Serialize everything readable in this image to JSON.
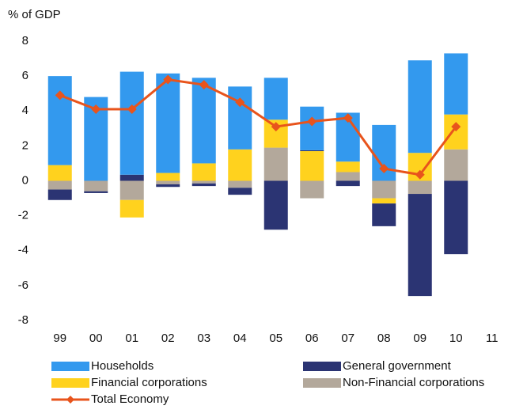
{
  "chart_data": {
    "type": "stacked-bar-line",
    "y_label": "% of GDP",
    "categories": [
      "99",
      "00",
      "01",
      "02",
      "03",
      "04",
      "05",
      "06",
      "07",
      "08",
      "09",
      "10",
      "11"
    ],
    "series": [
      {
        "name": "Households",
        "color": "#3399ee",
        "values": [
          5.1,
          4.8,
          5.9,
          5.7,
          4.9,
          3.6,
          2.4,
          2.5,
          2.8,
          3.2,
          5.3,
          3.5,
          null
        ]
      },
      {
        "name": "General government",
        "color": "#2b3473",
        "values": [
          -0.6,
          -0.1,
          0.35,
          -0.15,
          -0.15,
          -0.4,
          -2.8,
          0.05,
          -0.3,
          -1.3,
          -5.85,
          -4.2,
          null
        ]
      },
      {
        "name": "Financial corporations",
        "color": "#ffd21e",
        "values": [
          0.9,
          0,
          -1.0,
          0.45,
          1.0,
          1.8,
          1.6,
          1.7,
          0.6,
          -0.3,
          1.6,
          2.0,
          null
        ]
      },
      {
        "name": "Non-Financial corporations",
        "color": "#b3a89b",
        "values": [
          -0.5,
          -0.6,
          -1.1,
          -0.2,
          -0.15,
          -0.4,
          1.9,
          -1.0,
          0.5,
          -1.0,
          -0.75,
          1.8,
          null
        ]
      },
      {
        "name": "Total Economy",
        "color": "#e8541c",
        "type": "line",
        "values": [
          4.9,
          4.1,
          4.1,
          5.8,
          5.5,
          4.5,
          3.1,
          3.4,
          3.6,
          0.7,
          0.35,
          3.1,
          null
        ]
      }
    ],
    "ylim": [
      -8,
      8
    ],
    "yticks": [
      -8,
      -6,
      -4,
      -2,
      0,
      2,
      4,
      6,
      8
    ]
  }
}
